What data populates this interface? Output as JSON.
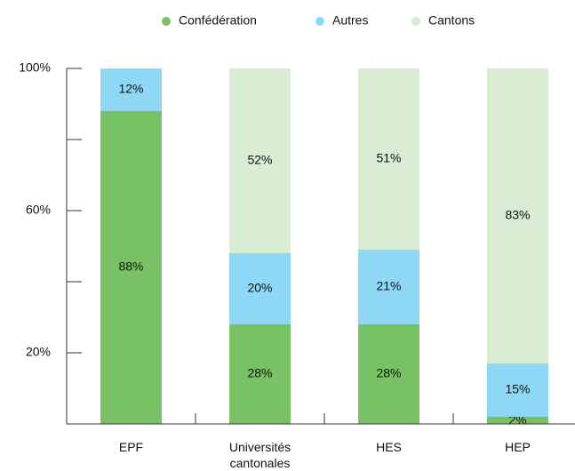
{
  "chart_data": {
    "type": "stacked_bar",
    "categories": [
      "EPF",
      "Universités cantonales",
      "HES",
      "HEP"
    ],
    "series": [
      {
        "name": "Confédération",
        "color": "#78c265",
        "values": [
          88,
          28,
          28,
          2
        ],
        "value_labels": [
          "88%",
          "28%",
          "28%",
          "2%"
        ]
      },
      {
        "name": "Autres",
        "color": "#8fd8f5",
        "values": [
          12,
          20,
          21,
          15
        ],
        "value_labels": [
          "12%",
          "20%",
          "21%",
          "15%"
        ]
      },
      {
        "name": "Cantons",
        "color": "#d9ecd4",
        "values": [
          null,
          52,
          51,
          83
        ],
        "value_labels": [
          null,
          "52%",
          "51%",
          "83%"
        ]
      }
    ],
    "ylim": [
      0,
      100
    ],
    "yticks": [
      {
        "value": 20,
        "label": "20%"
      },
      {
        "value": 60,
        "label": "60%"
      },
      {
        "value": 100,
        "label": "100%"
      }
    ],
    "minor_yticks": [
      40,
      80
    ],
    "legend": "top"
  }
}
